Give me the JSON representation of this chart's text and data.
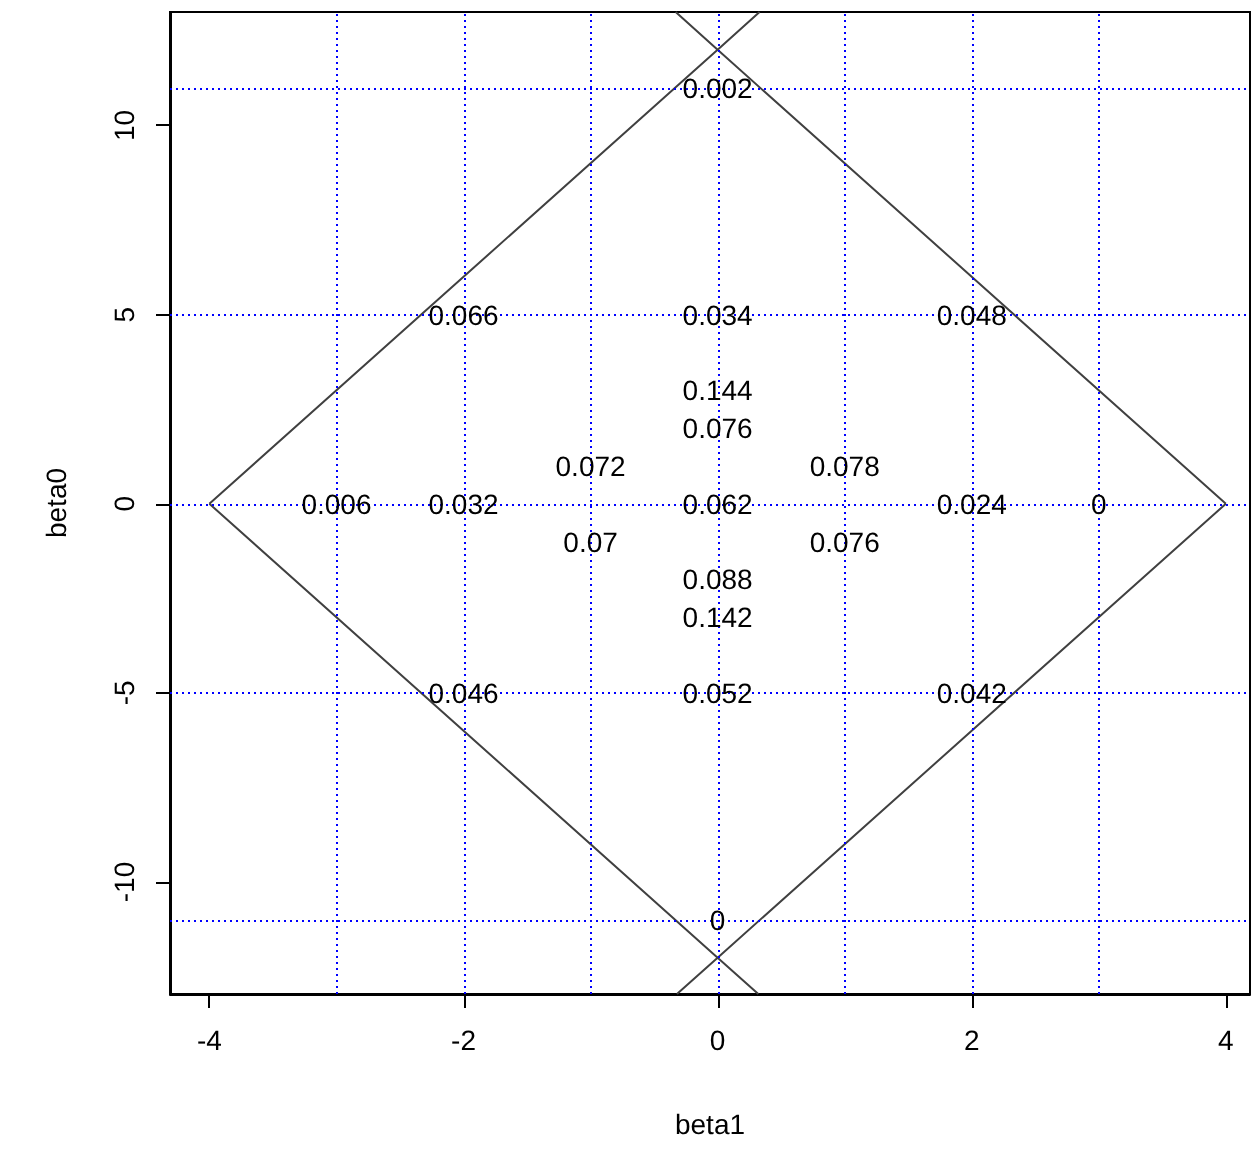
{
  "chart_data": {
    "type": "line",
    "xlabel": "beta1",
    "ylabel": "beta0",
    "xlim": [
      -4.31,
      4.19
    ],
    "ylim": [
      -12.96,
      13
    ],
    "xticks": [
      -4,
      -2,
      0,
      2,
      4
    ],
    "yticks": [
      -10,
      -5,
      0,
      5,
      10
    ],
    "series": [
      {
        "color": "#404040",
        "x": [
          -4,
          0,
          0.33
        ],
        "values": [
          0,
          12,
          13
        ]
      },
      {
        "color": "#404040",
        "x": [
          4,
          0,
          -0.33
        ],
        "values": [
          0,
          12,
          13
        ]
      },
      {
        "color": "#404040",
        "x": [
          -4,
          0,
          0.32
        ],
        "values": [
          0,
          -12,
          -12.96
        ]
      },
      {
        "color": "#404040",
        "x": [
          4,
          0,
          -0.32
        ],
        "values": [
          0,
          -12,
          -12.96
        ]
      }
    ],
    "annotations": [
      {
        "text": "0.002",
        "x": 0,
        "y": 11
      },
      {
        "text": "0.066",
        "x": -2,
        "y": 5
      },
      {
        "text": "0.034",
        "x": 0,
        "y": 5
      },
      {
        "text": "0.048",
        "x": 2,
        "y": 5
      },
      {
        "text": "0.144",
        "x": 0,
        "y": 3
      },
      {
        "text": "0.076",
        "x": 0,
        "y": 2
      },
      {
        "text": "0.072",
        "x": -1,
        "y": 1
      },
      {
        "text": "0.078",
        "x": 1,
        "y": 1
      },
      {
        "text": "0.006",
        "x": -3,
        "y": 0
      },
      {
        "text": "0.032",
        "x": -2,
        "y": 0
      },
      {
        "text": "0.062",
        "x": 0,
        "y": 0
      },
      {
        "text": "0.024",
        "x": 2,
        "y": 0
      },
      {
        "text": "0",
        "x": 3,
        "y": 0
      },
      {
        "text": "0.07",
        "x": -1,
        "y": -1
      },
      {
        "text": "0.076",
        "x": 1,
        "y": -1
      },
      {
        "text": "0.088",
        "x": 0,
        "y": -2
      },
      {
        "text": "0.142",
        "x": 0,
        "y": -3
      },
      {
        "text": "0.046",
        "x": -2,
        "y": -5
      },
      {
        "text": "0.052",
        "x": 0,
        "y": -5
      },
      {
        "text": "0.042",
        "x": 2,
        "y": -5
      },
      {
        "text": "0",
        "x": 0,
        "y": -11
      }
    ],
    "ref_lines": [
      {
        "axis": "x",
        "value": -3,
        "color": "#0000ff",
        "line_style": "dotted"
      },
      {
        "axis": "x",
        "value": -2,
        "color": "#0000ff",
        "line_style": "dotted"
      },
      {
        "axis": "x",
        "value": -1,
        "color": "#0000ff",
        "line_style": "dotted"
      },
      {
        "axis": "x",
        "value": 0,
        "color": "#0000ff",
        "line_style": "dotted"
      },
      {
        "axis": "x",
        "value": 1,
        "color": "#0000ff",
        "line_style": "dotted"
      },
      {
        "axis": "x",
        "value": 2,
        "color": "#0000ff",
        "line_style": "dotted"
      },
      {
        "axis": "x",
        "value": 3,
        "color": "#0000ff",
        "line_style": "dotted"
      },
      {
        "axis": "y",
        "value": 11,
        "color": "#0000ff",
        "line_style": "dotted"
      },
      {
        "axis": "y",
        "value": 5,
        "color": "#0000ff",
        "line_style": "dotted"
      },
      {
        "axis": "y",
        "value": 0,
        "color": "#0000ff",
        "line_style": "dotted"
      },
      {
        "axis": "y",
        "value": -5,
        "color": "#0000ff",
        "line_style": "dotted"
      },
      {
        "axis": "y",
        "value": -11,
        "color": "#0000ff",
        "line_style": "dotted"
      }
    ]
  }
}
